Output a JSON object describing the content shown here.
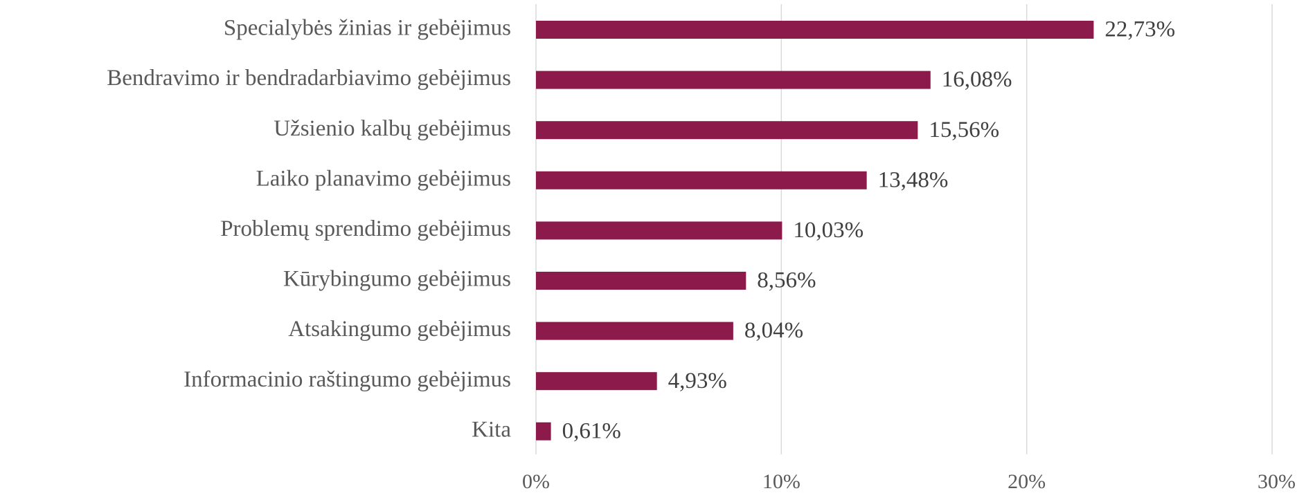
{
  "chart_data": {
    "type": "bar",
    "orientation": "horizontal",
    "categories": [
      "Specialybės žinias ir gebėjimus",
      "Bendravimo ir bendradarbiavimo gebėjimus",
      "Užsienio kalbų gebėjimus",
      "Laiko planavimo gebėjimus",
      "Problemų sprendimo gebėjimus",
      "Kūrybingumo gebėjimus",
      "Atsakingumo gebėjimus",
      "Informacinio raštingumo gebėjimus",
      "Kita"
    ],
    "values": [
      22.73,
      16.08,
      15.56,
      13.48,
      10.03,
      8.56,
      8.04,
      4.93,
      0.61
    ],
    "value_labels": [
      "22,73%",
      "16,08%",
      "15,56%",
      "13,48%",
      "10,03%",
      "8,56%",
      "8,04%",
      "4,93%",
      "0,61%"
    ],
    "color": "#8c1a4b",
    "xlim": [
      0,
      30
    ],
    "xticks": [
      {
        "value": 0,
        "label": "0%"
      },
      {
        "value": 10,
        "label": "10%"
      },
      {
        "value": 20,
        "label": "20%"
      },
      {
        "value": 30,
        "label": "30%"
      }
    ],
    "grid": true
  }
}
